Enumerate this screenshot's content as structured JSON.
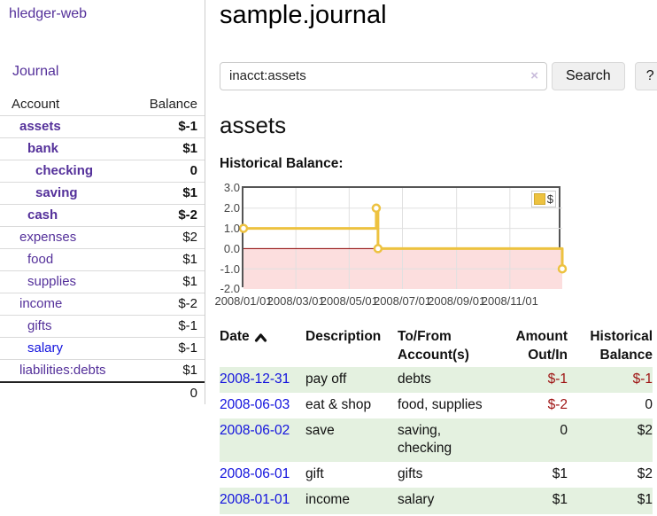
{
  "sidebar": {
    "brand": "hledger-web",
    "nav": {
      "journal": "Journal"
    },
    "accounts_table": {
      "headers": {
        "account": "Account",
        "balance": "Balance"
      },
      "rows": [
        {
          "name": "assets",
          "level": 1,
          "bold": true,
          "link_color": "purple",
          "balance": "$-1",
          "balance_style": "neg-strong"
        },
        {
          "name": "bank",
          "level": 2,
          "bold": true,
          "link_color": "purple",
          "balance": "$1",
          "balance_style": "pos"
        },
        {
          "name": "checking",
          "level": 3,
          "bold": true,
          "link_color": "purple",
          "balance": "0",
          "balance_style": "pos"
        },
        {
          "name": "saving",
          "level": 3,
          "bold": true,
          "link_color": "purple",
          "balance": "$1",
          "balance_style": "pos"
        },
        {
          "name": "cash",
          "level": 2,
          "bold": true,
          "link_color": "purple",
          "balance": "$-2",
          "balance_style": "neg-strong"
        },
        {
          "name": "expenses",
          "level": 1,
          "bold": false,
          "link_color": "purple",
          "balance": "$2",
          "balance_style": "pos"
        },
        {
          "name": "food",
          "level": 2,
          "bold": false,
          "link_color": "purple",
          "balance": "$1",
          "balance_style": "pos"
        },
        {
          "name": "supplies",
          "level": 2,
          "bold": false,
          "link_color": "purple",
          "balance": "$1",
          "balance_style": "pos"
        },
        {
          "name": "income",
          "level": 1,
          "bold": false,
          "link_color": "purple",
          "balance": "$-2",
          "balance_style": "neg-light"
        },
        {
          "name": "gifts",
          "level": 2,
          "bold": false,
          "link_color": "purple",
          "balance": "$-1",
          "balance_style": "neg-light"
        },
        {
          "name": "salary",
          "level": 2,
          "bold": false,
          "link_color": "blue",
          "balance": "$-1",
          "balance_style": "neg-light"
        },
        {
          "name": "liabilities:debts",
          "level": 1,
          "bold": false,
          "link_color": "purple",
          "balance": "$1",
          "balance_style": "pos"
        }
      ],
      "total": "0"
    }
  },
  "main": {
    "title": "sample.journal",
    "search": {
      "value": "inacct:assets",
      "clear_label": "×",
      "button_label": "Search",
      "help_label": "?"
    },
    "account_heading": "assets",
    "section_label": "Historical Balance:"
  },
  "chart_data": {
    "type": "line",
    "step": true,
    "title": "Historical Balance",
    "x_start": "2008-01-01",
    "x_end": "2008-12-31",
    "ylim": [
      -2,
      3
    ],
    "yticks": [
      "3.0",
      "2.0",
      "1.0",
      "0.0",
      "-1.0",
      "-2.0"
    ],
    "xticks": [
      "2008/01/01",
      "2008/03/01",
      "2008/05/01",
      "2008/07/01",
      "2008/09/01",
      "2008/11/01"
    ],
    "series": [
      {
        "name": "$",
        "color": "#edc240",
        "points": [
          [
            "2008-01-01",
            1
          ],
          [
            "2008-06-01",
            2
          ],
          [
            "2008-06-03",
            0
          ],
          [
            "2008-12-31",
            -1
          ]
        ]
      }
    ],
    "negative_fill": "#fcdede",
    "zero_line_color": "#8b0000",
    "grid": true,
    "legend_position": "top-right"
  },
  "register": {
    "headers": {
      "date": "Date",
      "description": "Description",
      "accounts": "To/From Account(s)",
      "amount": "Amount Out/In",
      "balance": "Historical Balance"
    },
    "sort_icon": "chevron-up",
    "rows": [
      {
        "date": "2008-12-31",
        "description": "pay off",
        "accounts": "debts",
        "amount": "$-1",
        "amount_style": "neg",
        "balance": "$-1",
        "balance_style": "neg"
      },
      {
        "date": "2008-06-03",
        "description": "eat & shop",
        "accounts": "food, supplies",
        "amount": "$-2",
        "amount_style": "neg",
        "balance": "0",
        "balance_style": "pos"
      },
      {
        "date": "2008-06-02",
        "description": "save",
        "accounts": "saving, checking",
        "amount": "0",
        "amount_style": "pos",
        "balance": "$2",
        "balance_style": "pos"
      },
      {
        "date": "2008-06-01",
        "description": "gift",
        "accounts": "gifts",
        "amount": "$1",
        "amount_style": "pos",
        "balance": "$2",
        "balance_style": "pos"
      },
      {
        "date": "2008-01-01",
        "description": "income",
        "accounts": "salary",
        "amount": "$1",
        "amount_style": "pos",
        "balance": "$1",
        "balance_style": "pos"
      }
    ]
  },
  "colors": {
    "link_purple": "#54309a",
    "link_blue": "#1212dd",
    "negative_strong": "#9e1212",
    "negative_light": "#c17d7d",
    "series_yellow": "#edc240",
    "row_stripe_green": "#e4f1e0",
    "negative_region_pink": "#fcdede",
    "zero_line_red": "#8b0000"
  }
}
